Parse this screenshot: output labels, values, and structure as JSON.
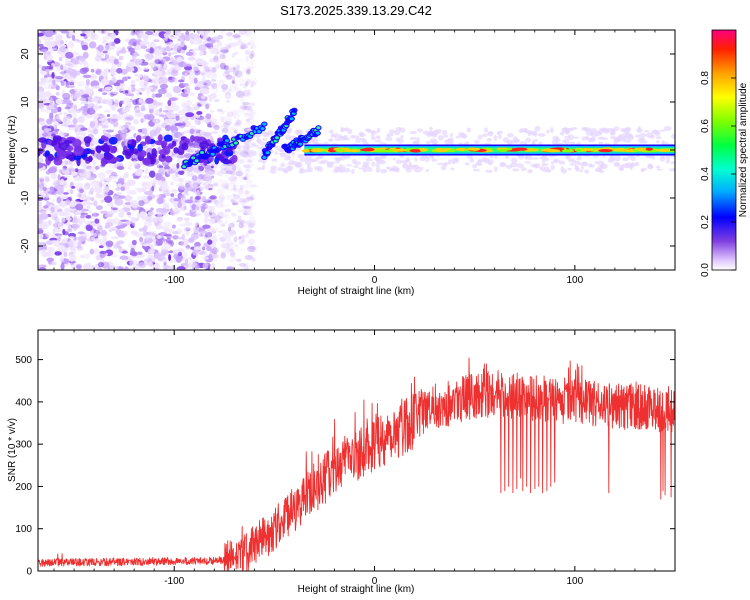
{
  "title": "S173.2025.339.13.29.C42",
  "chart_data": [
    {
      "type": "heatmap",
      "xlabel": "Height of straight line (km)",
      "ylabel": "Frequency (Hz)",
      "xlim": [
        -168,
        150
      ],
      "ylim": [
        -25,
        25
      ],
      "xticks": [
        -100,
        0,
        100
      ],
      "yticks": [
        -20,
        -10,
        0,
        10,
        20
      ],
      "xtick_labels": [
        "-100",
        "0",
        "100"
      ],
      "ytick_labels": [
        "-20",
        "-10",
        "0",
        "10",
        "20"
      ],
      "colorbar": {
        "label": "Normalized spectral amplitude",
        "range": [
          0,
          1
        ],
        "ticks": [
          0.0,
          0.2,
          0.4,
          0.6,
          0.8
        ],
        "tick_labels": [
          "0.0",
          "0.2",
          "0.4",
          "0.6",
          "0.8"
        ]
      },
      "features": {
        "noise_region_x": [
          -168,
          -70
        ],
        "tone_frequency_hz": 0,
        "tone_strong_x": [
          -35,
          150
        ],
        "drift_segments": [
          {
            "x": [
              -95,
              -55
            ],
            "f": [
              -3,
              5
            ]
          },
          {
            "x": [
              -55,
              -40
            ],
            "f": [
              -1,
              8
            ]
          },
          {
            "x": [
              -45,
              -28
            ],
            "f": [
              0,
              4
            ]
          }
        ]
      }
    },
    {
      "type": "line",
      "xlabel": "Height of straight line (km)",
      "ylabel": "SNR (10 * v/v)",
      "xlim": [
        -168,
        150
      ],
      "ylim": [
        0,
        570
      ],
      "xticks": [
        -100,
        0,
        100
      ],
      "yticks": [
        0,
        100,
        200,
        300,
        400,
        500
      ],
      "xtick_labels": [
        "-100",
        "0",
        "100"
      ],
      "ytick_labels": [
        "0",
        "100",
        "200",
        "300",
        "400",
        "500"
      ],
      "color": "#ee3030",
      "series": [
        {
          "name": "SNR",
          "profile": {
            "x": [
              -168,
              -110,
              -75,
              -65,
              -50,
              -35,
              -20,
              -5,
              10,
              25,
              45,
              60,
              80,
              100,
              120,
              140,
              150
            ],
            "y": [
              20,
              22,
              25,
              40,
              100,
              170,
              240,
              290,
              330,
              380,
              410,
              420,
              410,
              400,
              390,
              385,
              380
            ]
          },
          "dips_x": [
            63,
            65,
            67,
            69,
            71,
            73,
            74,
            76,
            78,
            80,
            82,
            84,
            86,
            88,
            90,
            117,
            143,
            144,
            145,
            148
          ],
          "dips_y": [
            185,
            190,
            200,
            185,
            195,
            220,
            190,
            200,
            185,
            195,
            200,
            185,
            190,
            200,
            210,
            185,
            170,
            190,
            180,
            175
          ]
        }
      ]
    }
  ]
}
